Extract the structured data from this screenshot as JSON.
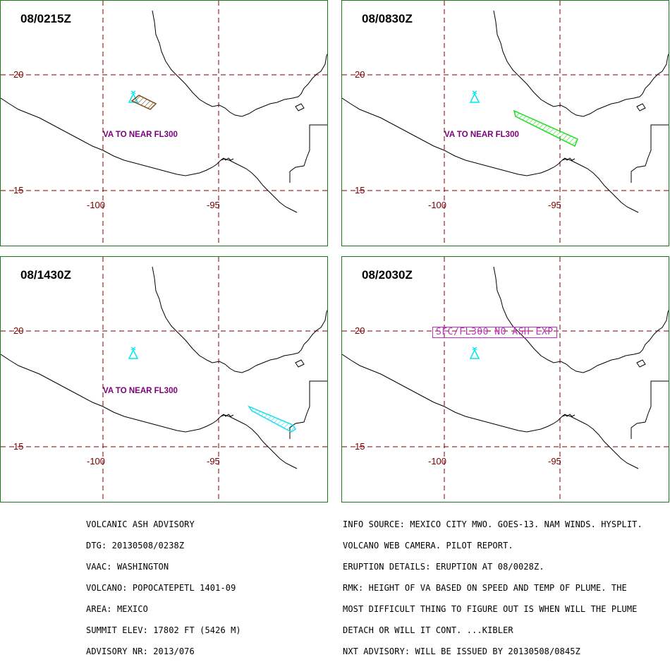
{
  "panels": [
    {
      "time": "08/0215Z",
      "va_label": "VA TO NEAR FL300",
      "plume": "brown"
    },
    {
      "time": "08/0830Z",
      "va_label": "VA TO NEAR FL300",
      "plume": "green"
    },
    {
      "time": "08/1430Z",
      "va_label": "VA TO NEAR FL300",
      "plume": "cyan"
    },
    {
      "time": "08/2030Z",
      "boxed_label": "SFC/FL300 NO ASH EXP",
      "plume": "none"
    }
  ],
  "axes": {
    "lat_labels": [
      "20",
      "15"
    ],
    "lon_labels": [
      "-100",
      "-95"
    ]
  },
  "colors": {
    "border": "#1a7a1a",
    "grid": "#7a0000",
    "volcano": "#00e5ee",
    "plume_brown": "#7a4a1a",
    "plume_green": "#22dd22",
    "plume_cyan": "#22ddee",
    "va_text": "#7a007a",
    "boxed_text": "#c030c0"
  },
  "advisory_left": [
    "VOLCANIC ASH ADVISORY",
    "DTG: 20130508/0238Z",
    "VAAC: WASHINGTON",
    "VOLCANO: POPOCATEPETL 1401-09",
    "AREA: MEXICO",
    "SUMMIT ELEV: 17802 FT (5426 M)",
    "ADVISORY NR: 2013/076"
  ],
  "advisory_right": [
    "INFO SOURCE: MEXICO CITY MWO. GOES-13. NAM WINDS. HYSPLIT.",
    "VOLCANO WEB CAMERA. PILOT REPORT.",
    "ERUPTION DETAILS: ERUPTION AT 08/0028Z.",
    "RMK: HEIGHT OF VA BASED ON SPEED AND TEMP OF PLUME. THE",
    "MOST DIFFICULT THING TO FIGURE OUT IS WHEN WILL THE PLUME",
    "DETACH OR WILL IT CONT. ...KIBLER",
    "NXT ADVISORY: WILL BE ISSUED BY 20130508/0845Z"
  ]
}
